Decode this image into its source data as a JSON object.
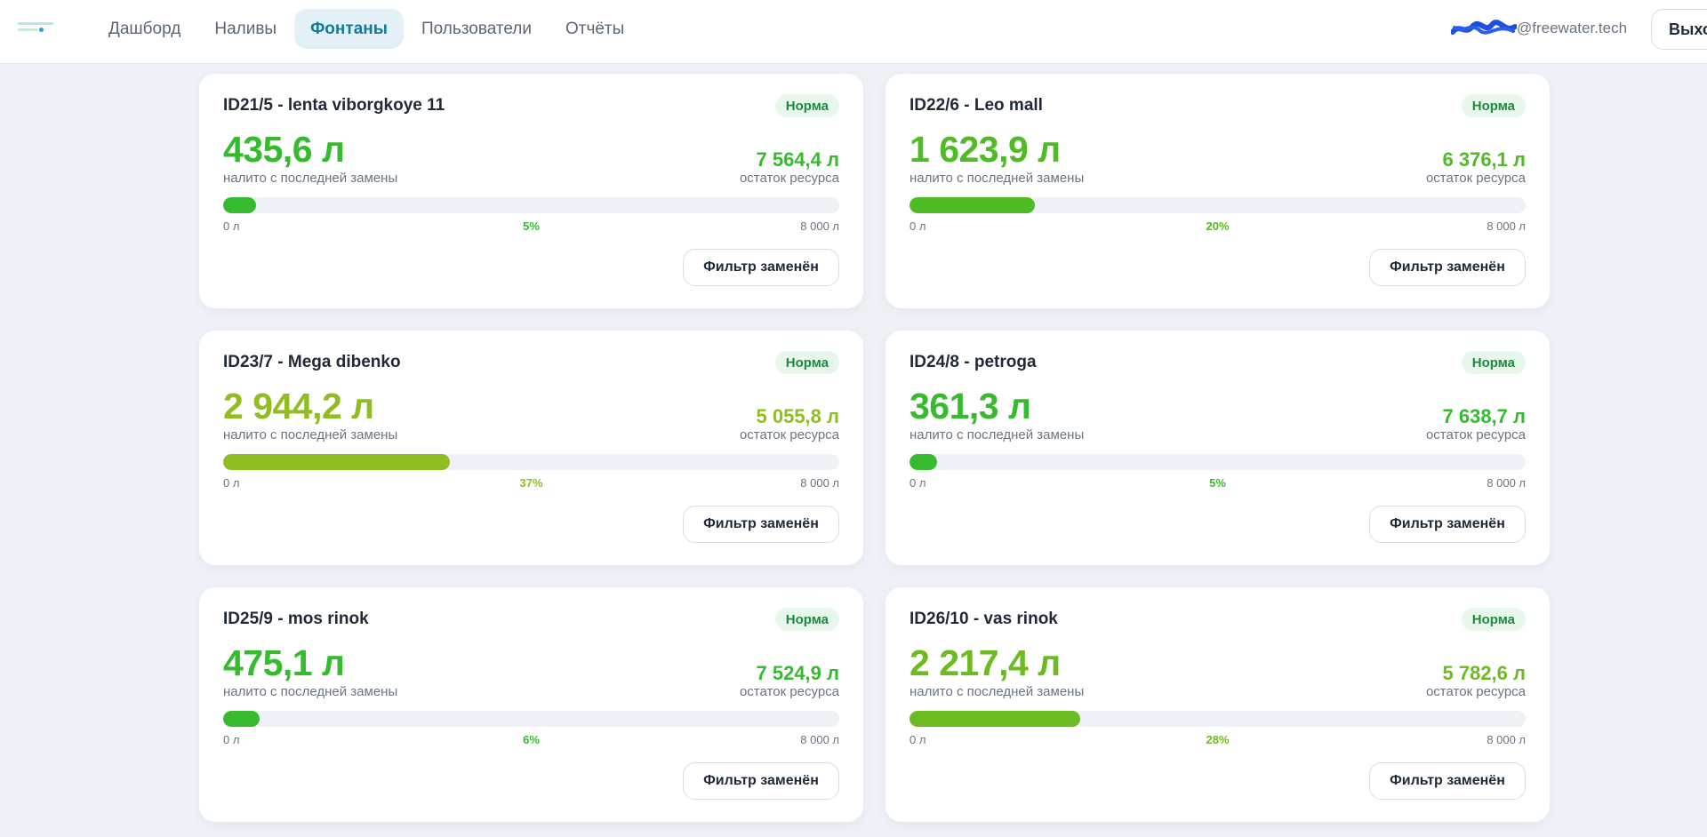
{
  "nav": {
    "items": [
      {
        "label": "Дашборд",
        "active": false
      },
      {
        "label": "Наливы",
        "active": false
      },
      {
        "label": "Фонтаны",
        "active": true
      },
      {
        "label": "Пользователи",
        "active": false
      },
      {
        "label": "Отчёты",
        "active": false
      }
    ]
  },
  "user": {
    "email_domain": "@freewater.tech",
    "logout_label": "Выход"
  },
  "colors": {
    "green": "#35bb2d",
    "yellow_green": "#8fbd22",
    "mid_green": "#6cbb22",
    "badge_bg": "#e8f7ec",
    "badge_text": "#1d8a3e",
    "active_nav": "#157a99"
  },
  "fountains": [
    {
      "title": "ID21/5 - lenta viborgkoye 11",
      "status": "Норма",
      "poured": "435,6 л",
      "poured_caption": "налито с последней замены",
      "remaining": "7 564,4 л",
      "remaining_caption": "остаток ресурса",
      "percent_label": "5%",
      "fill_percent": 5.4,
      "scale_min": "0 л",
      "scale_max": "8 000 л",
      "button": "Фильтр заменён",
      "color": "#35bb2d"
    },
    {
      "title": "ID22/6 - Leo mall",
      "status": "Норма",
      "poured": "1 623,9 л",
      "poured_caption": "налито с последней замены",
      "remaining": "6 376,1 л",
      "remaining_caption": "остаток ресурса",
      "percent_label": "20%",
      "fill_percent": 20.3,
      "scale_min": "0 л",
      "scale_max": "8 000 л",
      "button": "Фильтр заменён",
      "color": "#4fbb25"
    },
    {
      "title": "ID23/7 - Mega dibenko",
      "status": "Норма",
      "poured": "2 944,2 л",
      "poured_caption": "налито с последней замены",
      "remaining": "5 055,8 л",
      "remaining_caption": "остаток ресурса",
      "percent_label": "37%",
      "fill_percent": 36.8,
      "scale_min": "0 л",
      "scale_max": "8 000 л",
      "button": "Фильтр заменён",
      "color": "#8fbd22"
    },
    {
      "title": "ID24/8 - petroga",
      "status": "Норма",
      "poured": "361,3 л",
      "poured_caption": "налито с последней замены",
      "remaining": "7 638,7 л",
      "remaining_caption": "остаток ресурса",
      "percent_label": "5%",
      "fill_percent": 4.5,
      "scale_min": "0 л",
      "scale_max": "8 000 л",
      "button": "Фильтр заменён",
      "color": "#35bb2d"
    },
    {
      "title": "ID25/9 - mos rinok",
      "status": "Норма",
      "poured": "475,1 л",
      "poured_caption": "налито с последней замены",
      "remaining": "7 524,9 л",
      "remaining_caption": "остаток ресурса",
      "percent_label": "6%",
      "fill_percent": 5.9,
      "scale_min": "0 л",
      "scale_max": "8 000 л",
      "button": "Фильтр заменён",
      "color": "#35bb2d"
    },
    {
      "title": "ID26/10 - vas rinok",
      "status": "Норма",
      "poured": "2 217,4 л",
      "poured_caption": "налито с последней замены",
      "remaining": "5 782,6 л",
      "remaining_caption": "остаток ресурса",
      "percent_label": "28%",
      "fill_percent": 27.7,
      "scale_min": "0 л",
      "scale_max": "8 000 л",
      "button": "Фильтр заменён",
      "color": "#6cbb22"
    }
  ]
}
